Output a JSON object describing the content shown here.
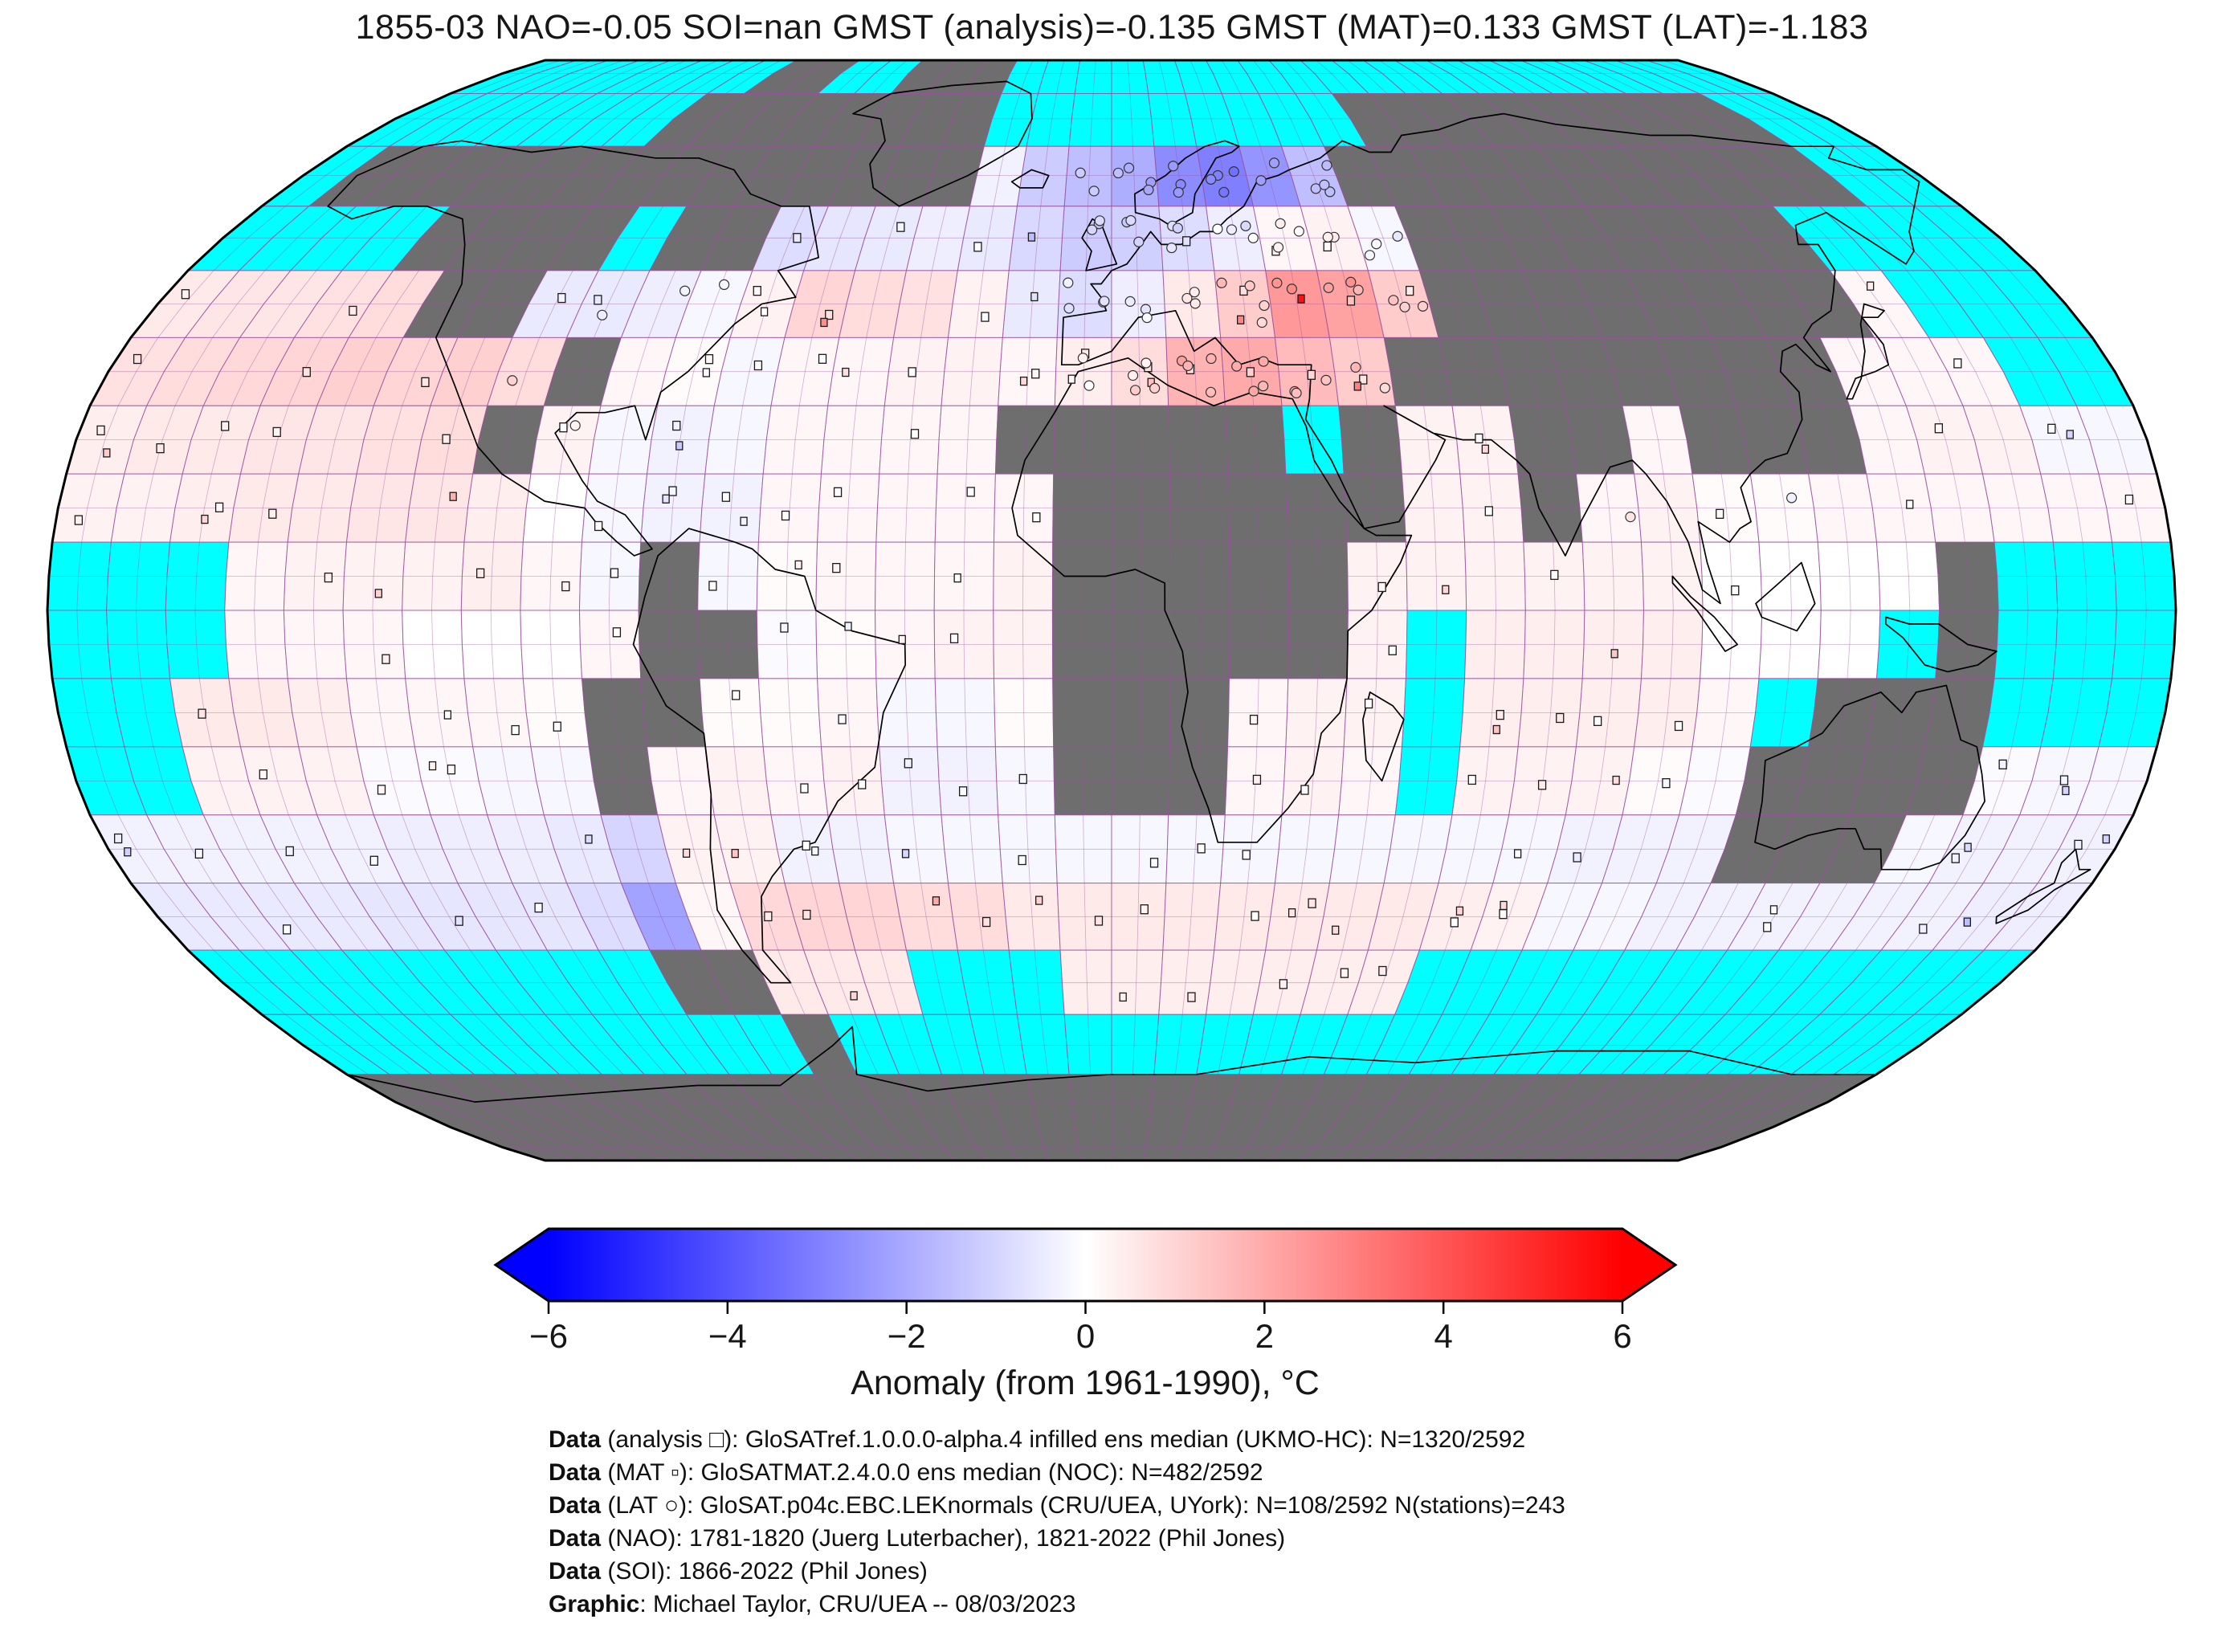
{
  "title": "1855-03 NAO=-0.05 SOI=nan GMST (analysis)=-0.135 GMST (MAT)=0.133 GMST (LAT)=-1.183",
  "colorbar": {
    "label": "Anomaly (from 1961-1990), °C",
    "tick_labels": [
      "−6",
      "−4",
      "−2",
      "0",
      "2",
      "4",
      "6"
    ],
    "tick_values": [
      -6,
      -4,
      -2,
      0,
      2,
      4,
      6
    ],
    "min": -6,
    "max": 6,
    "neg_color": "#0000FF",
    "mid_color": "#FFFFFF",
    "pos_color": "#FF0000"
  },
  "credits": [
    {
      "bold": "Data",
      "rest": " (analysis □): GloSATref.1.0.0.0-alpha.4 infilled ens median (UKMO-HC): N=1320/2592"
    },
    {
      "bold": "Data",
      "rest": " (MAT ▫): GloSATMAT.2.4.0.0 ens median (NOC): N=482/2592"
    },
    {
      "bold": "Data",
      "rest": " (LAT ○): GloSAT.p04c.EBC.LEKnormals (CRU/UEA, UYork): N=108/2592 N(stations)=243"
    },
    {
      "bold": "Data",
      "rest": " (NAO): 1781-1820 (Juerg Luterbacher), 1821-2022 (Phil Jones)"
    },
    {
      "bold": "Data",
      "rest": " (SOI): 1866-2022 (Phil Jones)"
    },
    {
      "bold": "Graphic",
      "rest": ": Michael Taylor, CRU/UEA -- 08/03/2023"
    }
  ],
  "map": {
    "projection": "robinson",
    "no_data_land_color": "#6E6E6E",
    "climatology_missing_color": "#00FFFF",
    "graticule_color": "#9C50A0",
    "graticule_step_deg": 5,
    "coastline_color": "#000000",
    "outline_color": "#000000"
  },
  "chart_data": {
    "type": "heatmap",
    "projection": "robinson",
    "title": "1855-03 NAO=-0.05 SOI=nan GMST (analysis)=-0.135 GMST (MAT)=0.133 GMST (LAT)=-1.183",
    "stats": {
      "date": "1855-03",
      "NAO": -0.05,
      "SOI": "nan",
      "GMST_analysis": -0.135,
      "GMST_MAT": 0.133,
      "GMST_LAT": -1.183
    },
    "colorbar_label": "Anomaly (from 1961-1990), °C",
    "value_range": [
      -6,
      6
    ],
    "legend": {
      "analysis": {
        "symbol": "open-square",
        "label": "analysis",
        "count": "N=1320/2592"
      },
      "MAT": {
        "symbol": "filled-square",
        "label": "MAT",
        "count": "N=482/2592"
      },
      "LAT": {
        "symbol": "circle",
        "label": "LAT",
        "count": "N=108/2592",
        "stations": 243
      }
    },
    "grid": {
      "comment": "10-degree estimate of the 5-degree field. C = cyan (missing/climatology), G = gray (no-data land), numbers = anomaly degC",
      "lon_start": -180,
      "lon_step": 10,
      "lat_start": 90,
      "lat_step": -10,
      "rows": [
        [
          "C",
          "C",
          "C",
          "C",
          "C",
          "C",
          "C",
          "C",
          "G",
          "G",
          "C",
          "C",
          "G",
          "G",
          "G",
          "C",
          "C",
          "C",
          "C",
          "C",
          "C",
          "C",
          "C",
          "C",
          "C",
          "C",
          "C",
          "C",
          "C",
          "C",
          "C",
          "C",
          "C",
          "C",
          "C",
          "C"
        ],
        [
          "C",
          "C",
          "C",
          "C",
          "C",
          "C",
          "C",
          "G",
          "G",
          "G",
          "G",
          "G",
          "G",
          "G",
          "G",
          "C",
          "C",
          "C",
          "C",
          "C",
          "C",
          "C",
          "C",
          "C",
          "G",
          "G",
          "G",
          "G",
          "G",
          "G",
          "G",
          "G",
          "G",
          "G",
          "C",
          "C"
        ],
        [
          "C",
          "G",
          "G",
          "G",
          "G",
          "G",
          "G",
          "G",
          "G",
          "G",
          "G",
          "G",
          "G",
          "G",
          "G",
          -0.3,
          -1.2,
          -1.5,
          -1.9,
          -2.7,
          -3.0,
          -2.5,
          -1.5,
          "G",
          "G",
          "G",
          "G",
          "G",
          "G",
          "G",
          "G",
          "G",
          "G",
          "G",
          "C",
          "C"
        ],
        [
          "C",
          "C",
          "C",
          "C",
          "G",
          "G",
          "G",
          "G",
          "C",
          "G",
          "G",
          -0.8,
          -0.6,
          -0.5,
          -0.4,
          -0.5,
          -0.9,
          -1.2,
          -1.1,
          -0.8,
          -0.4,
          0.2,
          0.3,
          -0.2,
          "G",
          "G",
          "G",
          "G",
          "G",
          "G",
          "G",
          "G",
          "C",
          "C",
          "C",
          "C"
        ],
        [
          0.5,
          0.6,
          0.6,
          0.7,
          0.8,
          "G",
          "G",
          -0.5,
          -0.5,
          -0.4,
          -0.2,
          0.3,
          1.0,
          0.8,
          0.7,
          0.3,
          -0.5,
          -0.8,
          -0.4,
          0.5,
          1.2,
          2.4,
          2.2,
          1.2,
          "G",
          "G",
          "G",
          "G",
          "G",
          "G",
          "G",
          "G",
          0.2,
          "C",
          "C",
          "C"
        ],
        [
          0.7,
          0.8,
          0.9,
          1.0,
          1.1,
          1.0,
          1.1,
          0.8,
          "G",
          0.2,
          0.1,
          -0.2,
          0.2,
          0.2,
          0.3,
          0.3,
          0.2,
          0.4,
          0.8,
          1.8,
          2.0,
          1.6,
          1.2,
          "G",
          "G",
          "G",
          "G",
          "G",
          "G",
          "G",
          "G",
          0.2,
          0.2,
          0.2,
          "C",
          "C"
        ],
        [
          0.4,
          0.5,
          0.5,
          0.6,
          0.6,
          0.7,
          0.8,
          "G",
          0.3,
          -0.2,
          -0.3,
          -0.2,
          0.2,
          0.2,
          0.2,
          0.2,
          "G",
          "G",
          "G",
          "G",
          "G",
          "C",
          "G",
          0.3,
          0.3,
          "G",
          "G",
          0.2,
          "G",
          "G",
          "G",
          0.2,
          0.3,
          0.3,
          -0.2,
          -0.2
        ],
        [
          0.3,
          0.3,
          0.4,
          0.5,
          0.5,
          0.6,
          0.6,
          0.4,
          0.0,
          -0.2,
          -0.3,
          -0.3,
          0.2,
          0.2,
          0.2,
          0.2,
          0.2,
          "G",
          "G",
          "G",
          "G",
          "G",
          "G",
          0.3,
          0.3,
          "G",
          0.2,
          0.3,
          0.1,
          0.1,
          0.2,
          0.2,
          0.2,
          0.2,
          0.2,
          0.2
        ],
        [
          "C",
          "C",
          "C",
          0.2,
          0.3,
          0.3,
          0.3,
          0.4,
          0.2,
          -0.2,
          "G",
          -0.2,
          0.1,
          0.2,
          0.2,
          0.2,
          0.3,
          "G",
          "G",
          "G",
          "G",
          "G",
          0.3,
          0.3,
          0.3,
          0.3,
          0.3,
          0.3,
          0.0,
          0.0,
          0.0,
          0.0,
          "G",
          "C",
          "C",
          "C"
        ],
        [
          "C",
          "C",
          "C",
          0.2,
          0.2,
          0.2,
          0.0,
          0.0,
          0.0,
          0.2,
          "G",
          "G",
          -0.1,
          0.1,
          0.2,
          0.3,
          0.3,
          "G",
          "G",
          "G",
          "G",
          "G",
          0.3,
          "C",
          0.4,
          0.4,
          0.4,
          0.4,
          0.0,
          0.0,
          0.0,
          "C",
          "G",
          "C",
          "C",
          "C"
        ],
        [
          "C",
          "C",
          0.5,
          0.5,
          0.4,
          0.2,
          0.2,
          0.2,
          0.1,
          "G",
          "G",
          0.1,
          0.1,
          0.2,
          -0.2,
          -0.2,
          0.1,
          "G",
          "G",
          "G",
          0.2,
          0.3,
          0.3,
          "C",
          0.4,
          0.4,
          0.4,
          0.4,
          0.2,
          "C",
          "G",
          "G",
          "G",
          "C",
          "C",
          "C"
        ],
        [
          "C",
          "C",
          0.3,
          0.3,
          0.3,
          -0.1,
          -0.1,
          -0.2,
          -0.2,
          "G",
          0.2,
          0.3,
          0.2,
          0.3,
          -0.3,
          -0.3,
          -0.2,
          "G",
          "G",
          "G",
          0.2,
          0.3,
          0.2,
          "C",
          0.3,
          0.3,
          0.3,
          0.1,
          -0.1,
          "G",
          "G",
          "G",
          "G",
          -0.1,
          -0.2,
          -0.2
        ],
        [
          -0.3,
          -0.3,
          -0.3,
          -0.3,
          -0.3,
          -0.4,
          -0.4,
          -0.4,
          -0.5,
          -1.0,
          0.3,
          0.3,
          -0.3,
          -0.3,
          -0.2,
          -0.2,
          -0.2,
          -0.2,
          -0.2,
          -0.2,
          -0.2,
          -0.2,
          -0.2,
          -0.2,
          -0.2,
          -0.2,
          -0.3,
          -0.3,
          -0.3,
          "G",
          "G",
          "G",
          -0.2,
          -0.3,
          -0.3,
          -0.3
        ],
        [
          -0.5,
          -0.5,
          -0.5,
          -0.5,
          -0.6,
          -0.6,
          -0.6,
          -0.6,
          -0.8,
          -2.2,
          0.2,
          0.9,
          1.0,
          1.0,
          0.8,
          0.8,
          0.5,
          0.5,
          0.5,
          0.5,
          0.5,
          0.5,
          0.5,
          0.5,
          0.4,
          0.3,
          -0.2,
          -0.2,
          -0.3,
          -0.3,
          -0.3,
          -0.3,
          -0.3,
          -0.3,
          -0.4,
          -0.4
        ],
        [
          "C",
          "C",
          "C",
          "C",
          "C",
          "C",
          "C",
          "C",
          "C",
          "G",
          "G",
          0.5,
          0.5,
          0.5,
          "C",
          "C",
          "C",
          0.4,
          0.4,
          0.4,
          0.4,
          0.4,
          0.4,
          0.4,
          "C",
          "C",
          "C",
          "C",
          "C",
          "C",
          "C",
          "C",
          "C",
          "C",
          "C",
          "C"
        ],
        [
          "C",
          "C",
          "C",
          "C",
          "C",
          "C",
          "C",
          "C",
          "C",
          "C",
          "C",
          "G",
          "C",
          "C",
          "C",
          "C",
          "C",
          "C",
          "C",
          "C",
          "C",
          "C",
          "C",
          "C",
          "C",
          "C",
          "C",
          "C",
          "C",
          "C",
          "C",
          "C",
          "C",
          "C",
          "C",
          "C"
        ],
        [
          "G",
          "G",
          "G",
          "G",
          "G",
          "G",
          "G",
          "G",
          "G",
          "G",
          "G",
          "G",
          "G",
          "G",
          "G",
          "G",
          "G",
          "G",
          "G",
          "G",
          "G",
          "G",
          "G",
          "G",
          "G",
          "G",
          "G",
          "G",
          "G",
          "G",
          "G",
          "G",
          "G",
          "G",
          "G",
          "G"
        ],
        [
          "G",
          "G",
          "G",
          "G",
          "G",
          "G",
          "G",
          "G",
          "G",
          "G",
          "G",
          "G",
          "G",
          "G",
          "G",
          "G",
          "G",
          "G",
          "G",
          "G",
          "G",
          "G",
          "G",
          "G",
          "G",
          "G",
          "G",
          "G",
          "G",
          "G",
          "G",
          "G",
          "G",
          "G",
          "G",
          "G"
        ]
      ]
    }
  }
}
